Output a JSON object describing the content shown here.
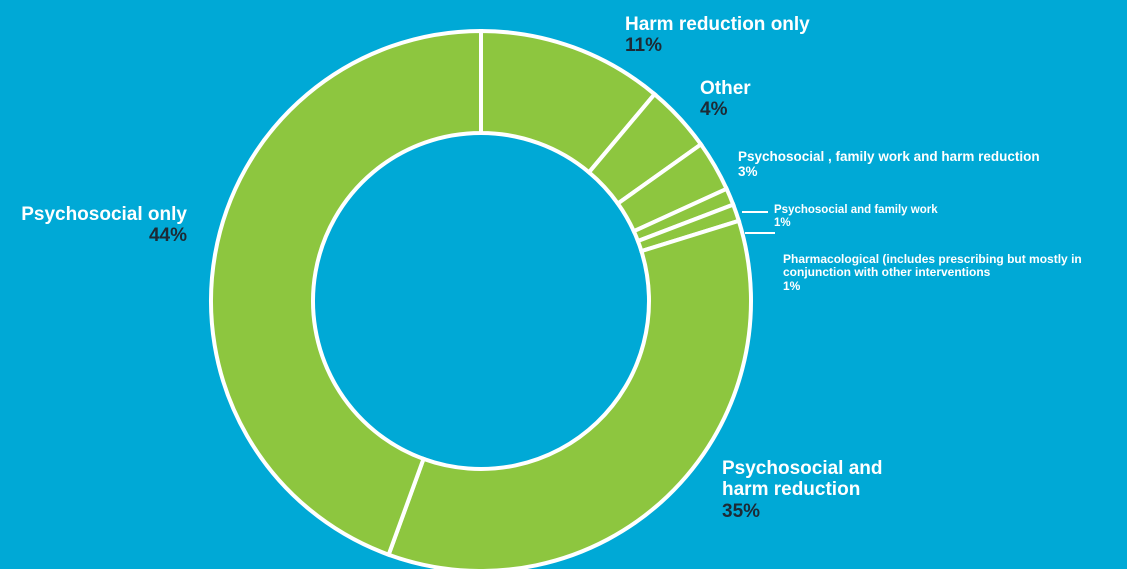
{
  "colors": {
    "background": "#00a9d6",
    "slice": "#8dc63f",
    "separator": "#ffffff",
    "percent_text": "#1d2a35"
  },
  "chart_data": {
    "type": "pie",
    "variant": "donut",
    "categories": [
      "Harm reduction only",
      "Other",
      "Psychosocial , family work and harm reduction",
      "Psychosocial and family work",
      "Pharmacological (includes prescribing but mostly in conjunction with other interventions",
      "Psychosocial and harm reduction",
      "Psychosocial only"
    ],
    "values": [
      11,
      4,
      3,
      1,
      1,
      35,
      44
    ],
    "value_labels": [
      "11%",
      "4%",
      "3%",
      "1%",
      "1%",
      "35%",
      "44%"
    ],
    "unit": "%",
    "start": "12 o'clock, clockwise",
    "legend": "none"
  },
  "labels": {
    "harm_name": "Harm reduction only",
    "harm_pct": "11%",
    "other_name": "Other",
    "other_pct": "4%",
    "psfh_name": "Psychosocial , family work and harm reduction",
    "psfh_pct": "3%",
    "psf_name": "Psychosocial and family work",
    "psf_pct": "1%",
    "pharm_name_1": "Pharmacological (includes prescribing but mostly in",
    "pharm_name_2": "conjunction with other interventions",
    "pharm_pct": "1%",
    "pshr_name_1": "Psychosocial and",
    "pshr_name_2": "harm reduction",
    "pshr_pct": "35%",
    "pso_name": "Psychosocial only",
    "pso_pct": "44%"
  }
}
